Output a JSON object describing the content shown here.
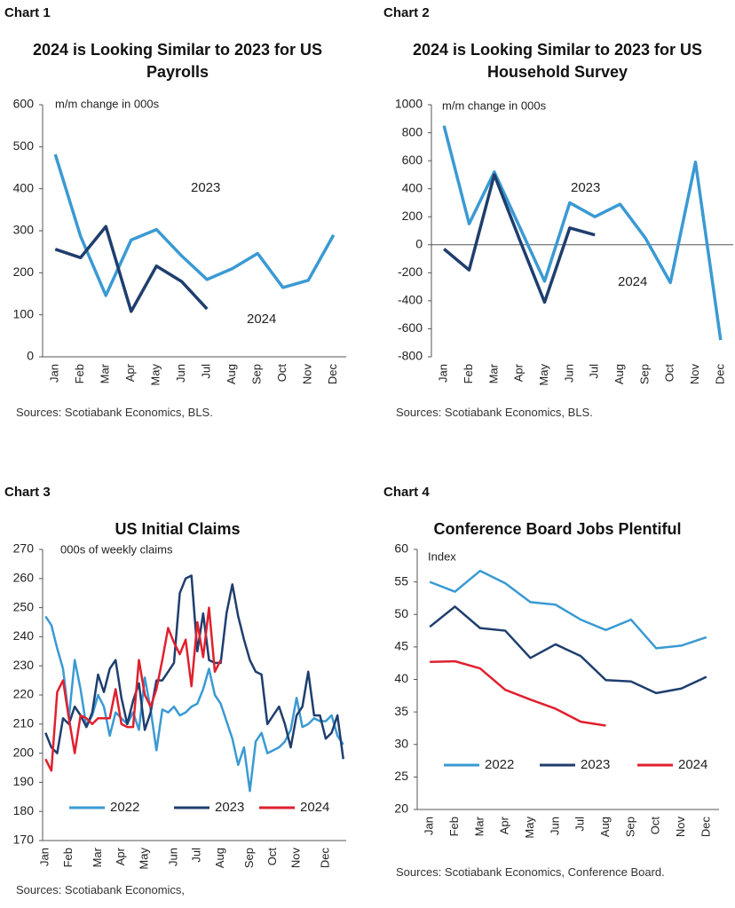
{
  "chart_data": [
    {
      "type": "line",
      "label": "Chart 1",
      "title": "2024 is Looking Similar to 2023 for US Payrolls",
      "note": "m/m  change in 000s",
      "sources": "Sources: Scotiabank Economics, BLS.",
      "categories": [
        "Jan",
        "Feb",
        "Mar",
        "Apr",
        "May",
        "Jun",
        "Jul",
        "Aug",
        "Sep",
        "Oct",
        "Nov",
        "Dec"
      ],
      "series": [
        {
          "name": "2023",
          "color": "#3a9ad3",
          "values": [
            482,
            287,
            146,
            278,
            303,
            240,
            184,
            210,
            246,
            165,
            182,
            290
          ]
        },
        {
          "name": "2024",
          "color": "#1f3e6e",
          "values": [
            256,
            236,
            310,
            108,
            216,
            179,
            114,
            null,
            null,
            null,
            null,
            null
          ]
        }
      ],
      "ylim": [
        0,
        600
      ],
      "yticks": [
        0,
        100,
        200,
        300,
        400,
        500,
        600
      ],
      "legend": "inline"
    },
    {
      "type": "line",
      "label": "Chart 2",
      "title": "2024 is Looking Similar to 2023 for US Household Survey",
      "note": "m/m  change in 000s",
      "sources": "Sources: Scotiabank Economics, BLS.",
      "categories": [
        "Jan",
        "Feb",
        "Mar",
        "Apr",
        "May",
        "Jun",
        "Jul",
        "Aug",
        "Sep",
        "Oct",
        "Nov",
        "Dec"
      ],
      "series": [
        {
          "name": "2023",
          "color": "#3a9ad3",
          "values": [
            850,
            150,
            520,
            130,
            -260,
            300,
            200,
            290,
            50,
            -270,
            590,
            -680
          ]
        },
        {
          "name": "2024",
          "color": "#1f3e6e",
          "values": [
            -30,
            -180,
            500,
            40,
            -410,
            120,
            70,
            null,
            null,
            null,
            null,
            null
          ]
        }
      ],
      "ylim": [
        -800,
        1000
      ],
      "yticks": [
        -800,
        -600,
        -400,
        -200,
        0,
        200,
        400,
        600,
        800,
        1000
      ],
      "legend": "inline"
    },
    {
      "type": "line",
      "label": "Chart 3",
      "title": "US Initial Claims",
      "note": "000s of weekly claims",
      "sources": "Sources: Scotiabank Economics,",
      "categories": [
        "Jan",
        null,
        null,
        null,
        "Feb",
        null,
        null,
        null,
        null,
        "Mar",
        null,
        null,
        null,
        "Apr",
        null,
        null,
        null,
        "May",
        null,
        null,
        null,
        null,
        "Jun",
        null,
        null,
        null,
        "Jul",
        null,
        null,
        null,
        "Aug",
        null,
        null,
        null,
        null,
        "Sep",
        null,
        null,
        null,
        "Oct",
        null,
        null,
        null,
        "Nov",
        null,
        null,
        null,
        null,
        "Dec",
        null,
        null,
        null
      ],
      "series": [
        {
          "name": "2022",
          "color": "#3a9ad3",
          "values": [
            247,
            244,
            236,
            229,
            212,
            232,
            222,
            209,
            213,
            220,
            216,
            206,
            214,
            212,
            210,
            214,
            208,
            226,
            215,
            201,
            215,
            214,
            216,
            213,
            214,
            216,
            217,
            222,
            229,
            220,
            217,
            211,
            205,
            196,
            202,
            187,
            204,
            207,
            200,
            201,
            202,
            204,
            208,
            219,
            209,
            210,
            212,
            211,
            211,
            213,
            206,
            203
          ]
        },
        {
          "name": "2023",
          "color": "#1f3e6e",
          "values": [
            207,
            202,
            200,
            212,
            210,
            216,
            213,
            209,
            214,
            227,
            221,
            229,
            232,
            219,
            210,
            218,
            224,
            208,
            214,
            225,
            225,
            228,
            231,
            255,
            260,
            261,
            235,
            248,
            232,
            231,
            231,
            248,
            258,
            247,
            239,
            232,
            228,
            227,
            210,
            213,
            216,
            210,
            202,
            213,
            216,
            228,
            213,
            213,
            205,
            207,
            213,
            198
          ]
        },
        {
          "name": "2024",
          "color": "#e0202e",
          "values": [
            198,
            194,
            221,
            225,
            212,
            200,
            213,
            212,
            210,
            212,
            212,
            212,
            222,
            210,
            209,
            209,
            232,
            220,
            216,
            222,
            232,
            243,
            238,
            234,
            239,
            223,
            245,
            233,
            250,
            228,
            232,
            null,
            null,
            null,
            null,
            null,
            null,
            null,
            null,
            null,
            null,
            null,
            null,
            null,
            null,
            null,
            null,
            null,
            null,
            null,
            null,
            null
          ]
        }
      ],
      "ylim": [
        170,
        270
      ],
      "yticks": [
        170,
        180,
        190,
        200,
        210,
        220,
        230,
        240,
        250,
        260,
        270
      ],
      "legend": "lower center"
    },
    {
      "type": "line",
      "label": "Chart 4",
      "title": "Conference Board Jobs Plentiful",
      "note": "Index",
      "sources": "Sources: Scotiabank Economics, Conference Board.",
      "categories": [
        "Jan",
        "Feb",
        "Mar",
        "Apr",
        "May",
        "Jun",
        "Jul",
        "Aug",
        "Sep",
        "Oct",
        "Nov",
        "Dec"
      ],
      "series": [
        {
          "name": "2022",
          "color": "#3a9ad3",
          "values": [
            55,
            53.5,
            56.7,
            54.8,
            51.9,
            51.5,
            49.2,
            47.6,
            49.2,
            44.8,
            45.2,
            46.5
          ]
        },
        {
          "name": "2023",
          "color": "#1f3e6e",
          "values": [
            48.1,
            51.2,
            47.9,
            47.5,
            43.3,
            45.4,
            43.6,
            39.9,
            39.7,
            37.9,
            38.6,
            40.4
          ]
        },
        {
          "name": "2024",
          "color": "#e0202e",
          "values": [
            42.7,
            42.8,
            41.7,
            38.4,
            36.9,
            35.5,
            33.5,
            32.9,
            null,
            null,
            null,
            null
          ]
        }
      ],
      "ylim": [
        20,
        60
      ],
      "yticks": [
        20,
        25,
        30,
        35,
        40,
        45,
        50,
        55,
        60
      ],
      "legend": "lower center"
    }
  ]
}
